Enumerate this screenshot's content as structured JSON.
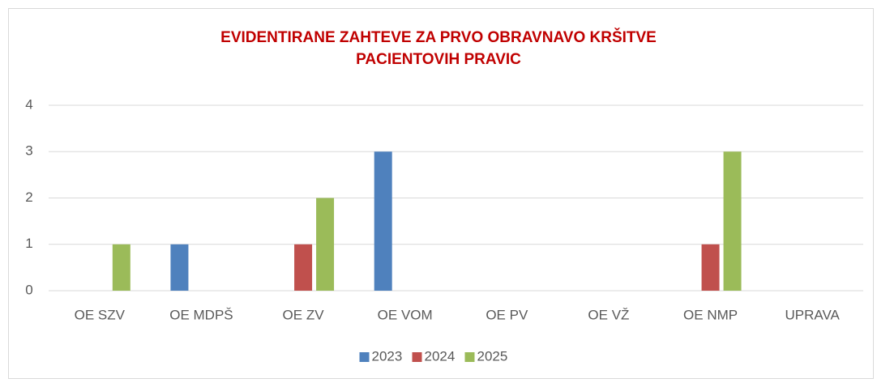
{
  "chart_data": {
    "type": "bar",
    "title": [
      "EVIDENTIRANE ZAHTEVE ZA PRVO OBRAVNAVO KRŠITVE",
      "PACIENTOVIH PRAVIC"
    ],
    "categories": [
      "OE SZV",
      "OE MDPŠ",
      "OE ZV",
      "OE VOM",
      "OE PV",
      "OE VŽ",
      "OE NMP",
      "UPRAVA"
    ],
    "series": [
      {
        "name": "2023",
        "color": "#4f81bd",
        "values": [
          0,
          1,
          0,
          3,
          0,
          0,
          0,
          0
        ]
      },
      {
        "name": "2024",
        "color": "#c0504d",
        "values": [
          0,
          0,
          1,
          0,
          0,
          0,
          1,
          0
        ]
      },
      {
        "name": "2025",
        "color": "#9bbb59",
        "values": [
          1,
          0,
          2,
          0,
          0,
          0,
          3,
          0
        ]
      }
    ],
    "ylim": [
      0,
      4
    ],
    "yticks": [
      0,
      1,
      2,
      3,
      4
    ],
    "grid": true,
    "legend": "bottom"
  }
}
